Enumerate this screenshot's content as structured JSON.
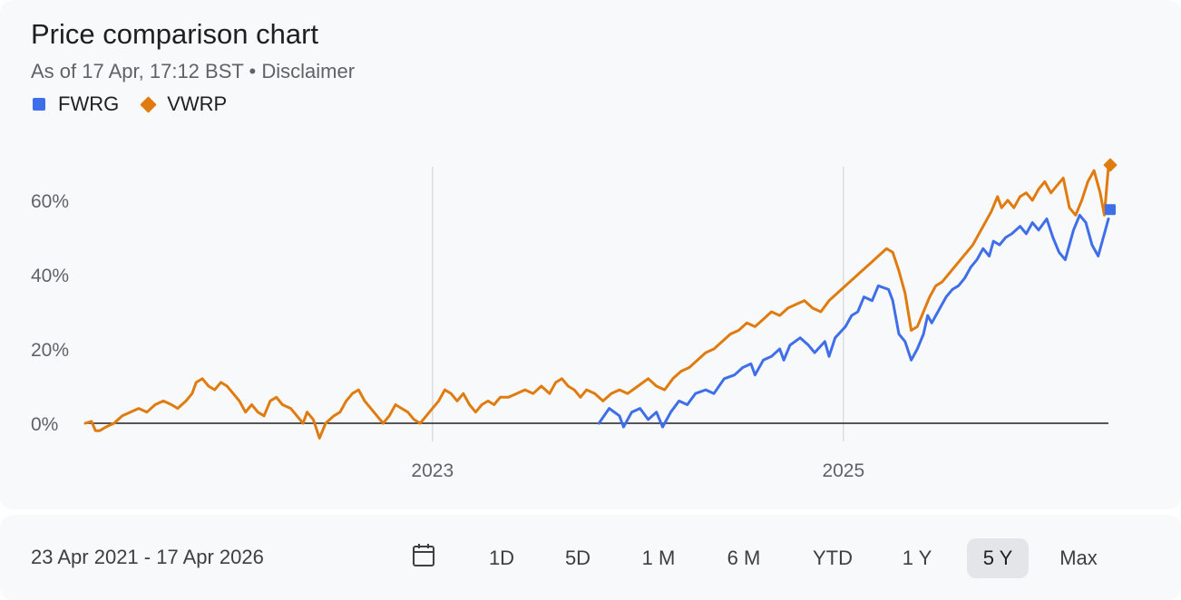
{
  "header": {
    "title": "Price comparison chart",
    "subtitle": "As of 17 Apr, 17:12 BST • Disclaimer"
  },
  "legend": [
    {
      "name": "FWRG",
      "color": "#3f6fe8",
      "marker": "square"
    },
    {
      "name": "VWRP",
      "color": "#e07b0f",
      "marker": "diamond"
    }
  ],
  "chart_data": {
    "type": "line",
    "title": "Price comparison chart",
    "x_range": [
      2021.31,
      2026.29
    ],
    "ylim": [
      -5,
      72
    ],
    "y_ticks": [
      0,
      20,
      40,
      60
    ],
    "y_tick_labels": [
      "0%",
      "20%",
      "40%",
      "60%"
    ],
    "x_ticks": [
      2023,
      2025
    ],
    "x_tick_labels": [
      "2023",
      "2025"
    ],
    "baseline": 0,
    "series": [
      {
        "name": "FWRG",
        "color": "#3f6fe8",
        "end_marker": "square",
        "points": [
          [
            2023.81,
            0
          ],
          [
            2023.86,
            4
          ],
          [
            2023.91,
            2
          ],
          [
            2023.93,
            -1
          ],
          [
            2023.97,
            3
          ],
          [
            2024.01,
            4
          ],
          [
            2024.05,
            1
          ],
          [
            2024.09,
            3
          ],
          [
            2024.12,
            -1
          ],
          [
            2024.16,
            3
          ],
          [
            2024.2,
            6
          ],
          [
            2024.24,
            5
          ],
          [
            2024.28,
            8
          ],
          [
            2024.33,
            9
          ],
          [
            2024.37,
            8
          ],
          [
            2024.42,
            12
          ],
          [
            2024.47,
            13
          ],
          [
            2024.51,
            15
          ],
          [
            2024.55,
            16
          ],
          [
            2024.57,
            13
          ],
          [
            2024.61,
            17
          ],
          [
            2024.65,
            18
          ],
          [
            2024.69,
            20
          ],
          [
            2024.71,
            17
          ],
          [
            2024.74,
            21
          ],
          [
            2024.79,
            23
          ],
          [
            2024.83,
            21
          ],
          [
            2024.86,
            19
          ],
          [
            2024.91,
            22
          ],
          [
            2024.93,
            18
          ],
          [
            2024.96,
            23
          ],
          [
            2025.01,
            26
          ],
          [
            2025.04,
            29
          ],
          [
            2025.07,
            30
          ],
          [
            2025.1,
            34
          ],
          [
            2025.14,
            33
          ],
          [
            2025.17,
            37
          ],
          [
            2025.22,
            36
          ],
          [
            2025.24,
            33
          ],
          [
            2025.27,
            24
          ],
          [
            2025.3,
            22
          ],
          [
            2025.33,
            17
          ],
          [
            2025.36,
            20
          ],
          [
            2025.39,
            24
          ],
          [
            2025.41,
            29
          ],
          [
            2025.43,
            27
          ],
          [
            2025.46,
            30
          ],
          [
            2025.5,
            34
          ],
          [
            2025.53,
            36
          ],
          [
            2025.56,
            37
          ],
          [
            2025.59,
            39
          ],
          [
            2025.62,
            42
          ],
          [
            2025.65,
            44
          ],
          [
            2025.68,
            47
          ],
          [
            2025.71,
            45
          ],
          [
            2025.73,
            49
          ],
          [
            2025.76,
            48
          ],
          [
            2025.79,
            50
          ],
          [
            2025.82,
            51
          ],
          [
            2025.86,
            53
          ],
          [
            2025.89,
            51
          ],
          [
            2025.92,
            54
          ],
          [
            2025.95,
            52
          ],
          [
            2025.99,
            55
          ],
          [
            2026.02,
            50
          ],
          [
            2026.05,
            46
          ],
          [
            2026.08,
            44
          ],
          [
            2026.12,
            52
          ],
          [
            2026.15,
            56
          ],
          [
            2026.18,
            54
          ],
          [
            2026.21,
            48
          ],
          [
            2026.24,
            45
          ],
          [
            2026.27,
            51
          ],
          [
            2026.29,
            55
          ]
        ]
      },
      {
        "name": "VWRP",
        "color": "#e07b0f",
        "end_marker": "diamond",
        "points": [
          [
            2021.31,
            0
          ],
          [
            2021.34,
            0.5
          ],
          [
            2021.36,
            -2
          ],
          [
            2021.38,
            -2
          ],
          [
            2021.41,
            -1
          ],
          [
            2021.45,
            0
          ],
          [
            2021.49,
            2
          ],
          [
            2021.53,
            3
          ],
          [
            2021.57,
            4
          ],
          [
            2021.61,
            3
          ],
          [
            2021.65,
            5
          ],
          [
            2021.69,
            6
          ],
          [
            2021.73,
            5
          ],
          [
            2021.76,
            4
          ],
          [
            2021.8,
            6
          ],
          [
            2021.83,
            8
          ],
          [
            2021.85,
            11
          ],
          [
            2021.88,
            12
          ],
          [
            2021.91,
            10
          ],
          [
            2021.94,
            9
          ],
          [
            2021.97,
            11
          ],
          [
            2022.0,
            10
          ],
          [
            2022.03,
            8
          ],
          [
            2022.06,
            6
          ],
          [
            2022.09,
            3
          ],
          [
            2022.12,
            5
          ],
          [
            2022.15,
            3
          ],
          [
            2022.18,
            2
          ],
          [
            2022.21,
            6
          ],
          [
            2022.24,
            7
          ],
          [
            2022.27,
            5
          ],
          [
            2022.31,
            4
          ],
          [
            2022.34,
            2
          ],
          [
            2022.37,
            0
          ],
          [
            2022.39,
            3
          ],
          [
            2022.42,
            1
          ],
          [
            2022.45,
            -4
          ],
          [
            2022.48,
            0
          ],
          [
            2022.52,
            2
          ],
          [
            2022.55,
            3
          ],
          [
            2022.58,
            6
          ],
          [
            2022.61,
            8
          ],
          [
            2022.64,
            9
          ],
          [
            2022.67,
            6
          ],
          [
            2022.7,
            4
          ],
          [
            2022.73,
            2
          ],
          [
            2022.76,
            0
          ],
          [
            2022.79,
            2
          ],
          [
            2022.82,
            5
          ],
          [
            2022.85,
            4
          ],
          [
            2022.88,
            3
          ],
          [
            2022.91,
            1
          ],
          [
            2022.94,
            0
          ],
          [
            2022.97,
            2
          ],
          [
            2023.0,
            4
          ],
          [
            2023.03,
            6
          ],
          [
            2023.06,
            9
          ],
          [
            2023.09,
            8
          ],
          [
            2023.12,
            6
          ],
          [
            2023.15,
            8
          ],
          [
            2023.18,
            5
          ],
          [
            2023.21,
            3
          ],
          [
            2023.24,
            5
          ],
          [
            2023.27,
            6
          ],
          [
            2023.3,
            5
          ],
          [
            2023.33,
            7
          ],
          [
            2023.37,
            7
          ],
          [
            2023.41,
            8
          ],
          [
            2023.45,
            9
          ],
          [
            2023.49,
            8
          ],
          [
            2023.53,
            10
          ],
          [
            2023.57,
            8
          ],
          [
            2023.6,
            11
          ],
          [
            2023.63,
            12
          ],
          [
            2023.66,
            10
          ],
          [
            2023.69,
            9
          ],
          [
            2023.72,
            7
          ],
          [
            2023.75,
            9
          ],
          [
            2023.79,
            8
          ],
          [
            2023.83,
            6
          ],
          [
            2023.87,
            8
          ],
          [
            2023.91,
            9
          ],
          [
            2023.95,
            8
          ],
          [
            2024.0,
            10
          ],
          [
            2024.05,
            12
          ],
          [
            2024.09,
            10
          ],
          [
            2024.13,
            9
          ],
          [
            2024.17,
            12
          ],
          [
            2024.21,
            14
          ],
          [
            2024.25,
            15
          ],
          [
            2024.29,
            17
          ],
          [
            2024.33,
            19
          ],
          [
            2024.37,
            20
          ],
          [
            2024.41,
            22
          ],
          [
            2024.45,
            24
          ],
          [
            2024.49,
            25
          ],
          [
            2024.53,
            27
          ],
          [
            2024.57,
            26
          ],
          [
            2024.61,
            28
          ],
          [
            2024.65,
            30
          ],
          [
            2024.69,
            29
          ],
          [
            2024.73,
            31
          ],
          [
            2024.77,
            32
          ],
          [
            2024.81,
            33
          ],
          [
            2024.85,
            31
          ],
          [
            2024.89,
            30
          ],
          [
            2024.93,
            33
          ],
          [
            2024.97,
            35
          ],
          [
            2025.01,
            37
          ],
          [
            2025.05,
            39
          ],
          [
            2025.09,
            41
          ],
          [
            2025.13,
            43
          ],
          [
            2025.17,
            45
          ],
          [
            2025.21,
            47
          ],
          [
            2025.24,
            46
          ],
          [
            2025.27,
            41
          ],
          [
            2025.3,
            35
          ],
          [
            2025.33,
            25
          ],
          [
            2025.36,
            26
          ],
          [
            2025.39,
            30
          ],
          [
            2025.42,
            34
          ],
          [
            2025.45,
            37
          ],
          [
            2025.48,
            38
          ],
          [
            2025.51,
            40
          ],
          [
            2025.54,
            42
          ],
          [
            2025.57,
            44
          ],
          [
            2025.6,
            46
          ],
          [
            2025.63,
            48
          ],
          [
            2025.66,
            51
          ],
          [
            2025.69,
            54
          ],
          [
            2025.72,
            57
          ],
          [
            2025.75,
            61
          ],
          [
            2025.77,
            58
          ],
          [
            2025.8,
            60
          ],
          [
            2025.83,
            58
          ],
          [
            2025.86,
            61
          ],
          [
            2025.89,
            62
          ],
          [
            2025.92,
            60
          ],
          [
            2025.95,
            63
          ],
          [
            2025.98,
            65
          ],
          [
            2026.01,
            62
          ],
          [
            2026.04,
            64
          ],
          [
            2026.07,
            66
          ],
          [
            2026.1,
            58
          ],
          [
            2026.13,
            56
          ],
          [
            2026.16,
            60
          ],
          [
            2026.19,
            65
          ],
          [
            2026.22,
            68
          ],
          [
            2026.25,
            62
          ],
          [
            2026.27,
            56
          ],
          [
            2026.29,
            69
          ]
        ]
      }
    ]
  },
  "range_bar": {
    "date_range": "23 Apr 2021 - 17 Apr 2026",
    "calendar_icon": "calendar-icon",
    "periods": [
      "1D",
      "5D",
      "1 M",
      "6 M",
      "YTD",
      "1 Y",
      "5 Y",
      "Max"
    ],
    "active_period": "5 Y"
  }
}
